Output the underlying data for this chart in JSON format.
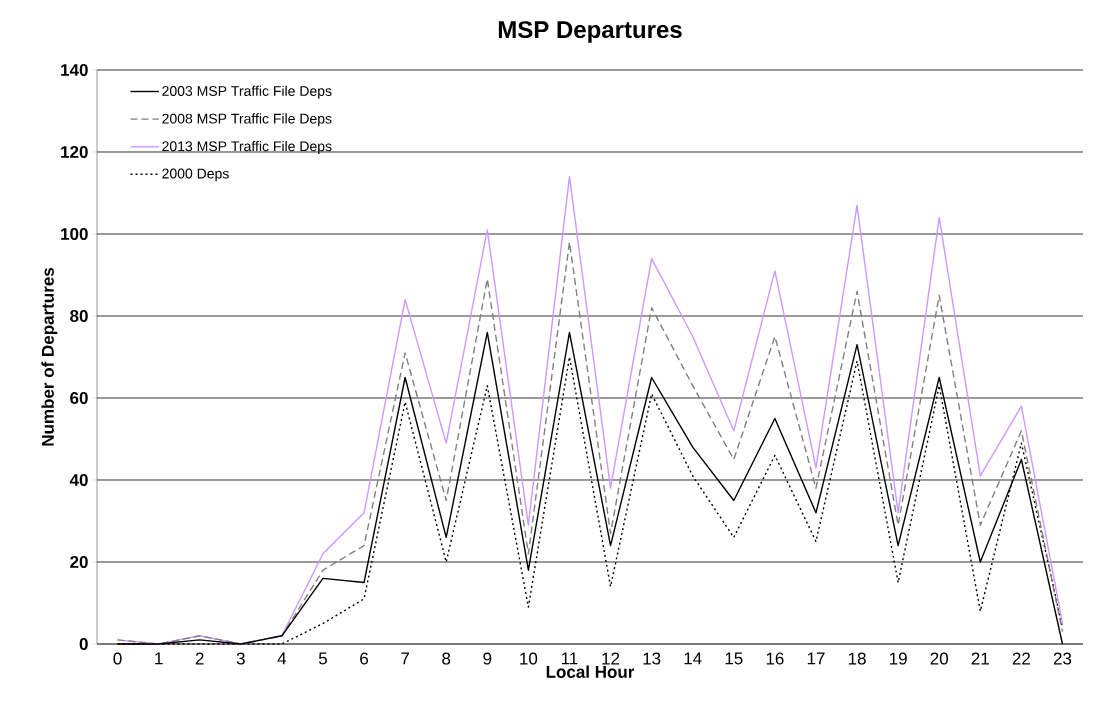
{
  "chart_data": {
    "type": "line",
    "title": "MSP Departures",
    "xlabel": "Local Hour",
    "ylabel": "Number of Departures",
    "categories": [
      "0",
      "1",
      "2",
      "3",
      "4",
      "5",
      "6",
      "7",
      "8",
      "9",
      "10",
      "11",
      "12",
      "13",
      "14",
      "15",
      "16",
      "17",
      "18",
      "19",
      "20",
      "21",
      "22",
      "23"
    ],
    "series": [
      {
        "name": "2003 MSP Traffic File Deps",
        "color": "#000000",
        "line_style": "solid",
        "values": [
          0,
          0,
          1,
          0,
          2,
          16,
          15,
          65,
          26,
          76,
          18,
          76,
          24,
          65,
          48,
          35,
          55,
          32,
          73,
          24,
          65,
          20,
          45,
          0
        ]
      },
      {
        "name": "2008 MSP Traffic File Deps",
        "color": "#808080",
        "line_style": "dashed",
        "values": [
          1,
          0,
          2,
          0,
          2,
          18,
          24,
          71,
          35,
          89,
          22,
          98,
          27,
          82,
          63,
          45,
          75,
          38,
          86,
          29,
          85,
          29,
          52,
          3
        ]
      },
      {
        "name": "2013 MSP Traffic File Deps",
        "color": "#cc99ff",
        "line_style": "solid",
        "values": [
          1,
          0,
          2,
          0,
          2,
          22,
          32,
          84,
          49,
          101,
          29,
          114,
          38,
          94,
          75,
          52,
          91,
          43,
          107,
          32,
          104,
          41,
          58,
          5
        ]
      },
      {
        "name": "2000 Deps",
        "color": "#000000",
        "line_style": "dotted",
        "values": [
          0,
          0,
          0,
          0,
          0,
          5,
          11,
          59,
          20,
          63,
          9,
          70,
          14,
          61,
          41,
          26,
          46,
          25,
          69,
          15,
          63,
          8,
          49,
          4
        ]
      }
    ],
    "ylim": [
      0,
      140
    ],
    "yticks": [
      0,
      20,
      40,
      60,
      80,
      100,
      120,
      140
    ],
    "grid": "y",
    "legend": "top left",
    "marker": "none"
  }
}
